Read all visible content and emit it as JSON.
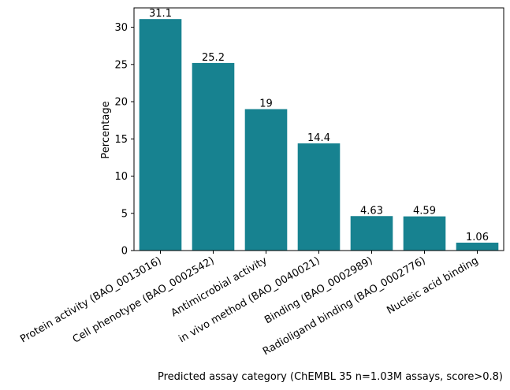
{
  "chart_data": {
    "type": "bar",
    "categories": [
      "Protein activity (BAO_0013016)",
      "Cell phenotype (BAO_0002542)",
      "Antimicrobial activity",
      "in vivo method (BAO_0040021)",
      "Binding (BAO_0002989)",
      "Radioligand binding (BAO_0002776)",
      "Nucleic acid binding"
    ],
    "values": [
      31.1,
      25.2,
      19,
      14.4,
      4.63,
      4.59,
      1.06
    ],
    "value_labels": [
      "31.1",
      "25.2",
      "19",
      "14.4",
      "4.63",
      "4.59",
      "1.06"
    ],
    "ylabel": "Percentage",
    "xlabel": "Predicted assay category (ChEMBL 35 n=1.03M assays, score>0.8)",
    "ylim": [
      0,
      32.6
    ],
    "yticks": [
      0,
      5,
      10,
      15,
      20,
      25,
      30
    ],
    "bar_color": "#178290",
    "grid": false,
    "legend": "none"
  }
}
